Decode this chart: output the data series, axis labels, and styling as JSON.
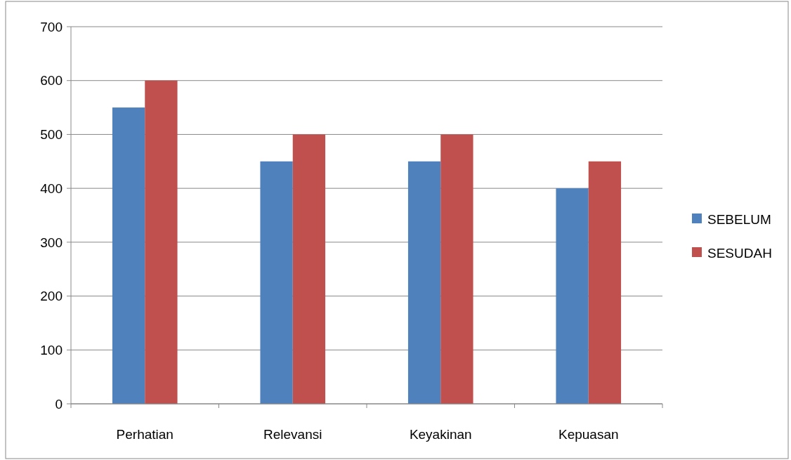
{
  "chart_data": {
    "type": "bar",
    "categories": [
      "Perhatian",
      "Relevansi",
      "Keyakinan",
      "Kepuasan"
    ],
    "series": [
      {
        "name": "SEBELUM",
        "color": "#4f81bd",
        "values": [
          550,
          450,
          450,
          400
        ]
      },
      {
        "name": "SESUDAH",
        "color": "#c0504d",
        "values": [
          600,
          500,
          500,
          450
        ]
      }
    ],
    "ylim": [
      0,
      700
    ],
    "yticks": [
      0,
      100,
      200,
      300,
      400,
      500,
      600,
      700
    ],
    "grid": "y",
    "legend": "right"
  }
}
